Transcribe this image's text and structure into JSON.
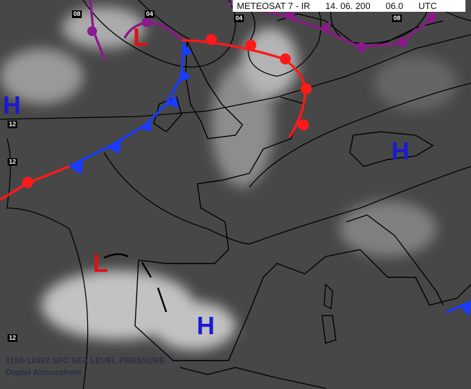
{
  "header": {
    "satellite": "METEOSAT 7 - IR",
    "date": "14. 06. 200",
    "time": "06.0",
    "zone": "UTC"
  },
  "isobar_labels": [
    "08",
    "04",
    "04",
    "08",
    "12",
    "12",
    "12"
  ],
  "pressure_centers": [
    {
      "type": "H",
      "color": "#1a1ad0"
    },
    {
      "type": "L",
      "color": "#e01010"
    },
    {
      "type": "H",
      "color": "#1a1ad0"
    },
    {
      "type": "L",
      "color": "#e01010"
    },
    {
      "type": "H",
      "color": "#1a1ad0"
    }
  ],
  "caption": {
    "line1": "1150-1249Z SFC SEA LEVEL PRESSURE",
    "line2": "Digital Atmosphere"
  },
  "colors": {
    "warm_front": "#ff1a1a",
    "cold_front": "#1a3cff",
    "occluded_front": "#8a1a8a",
    "isobar": "#000000"
  }
}
